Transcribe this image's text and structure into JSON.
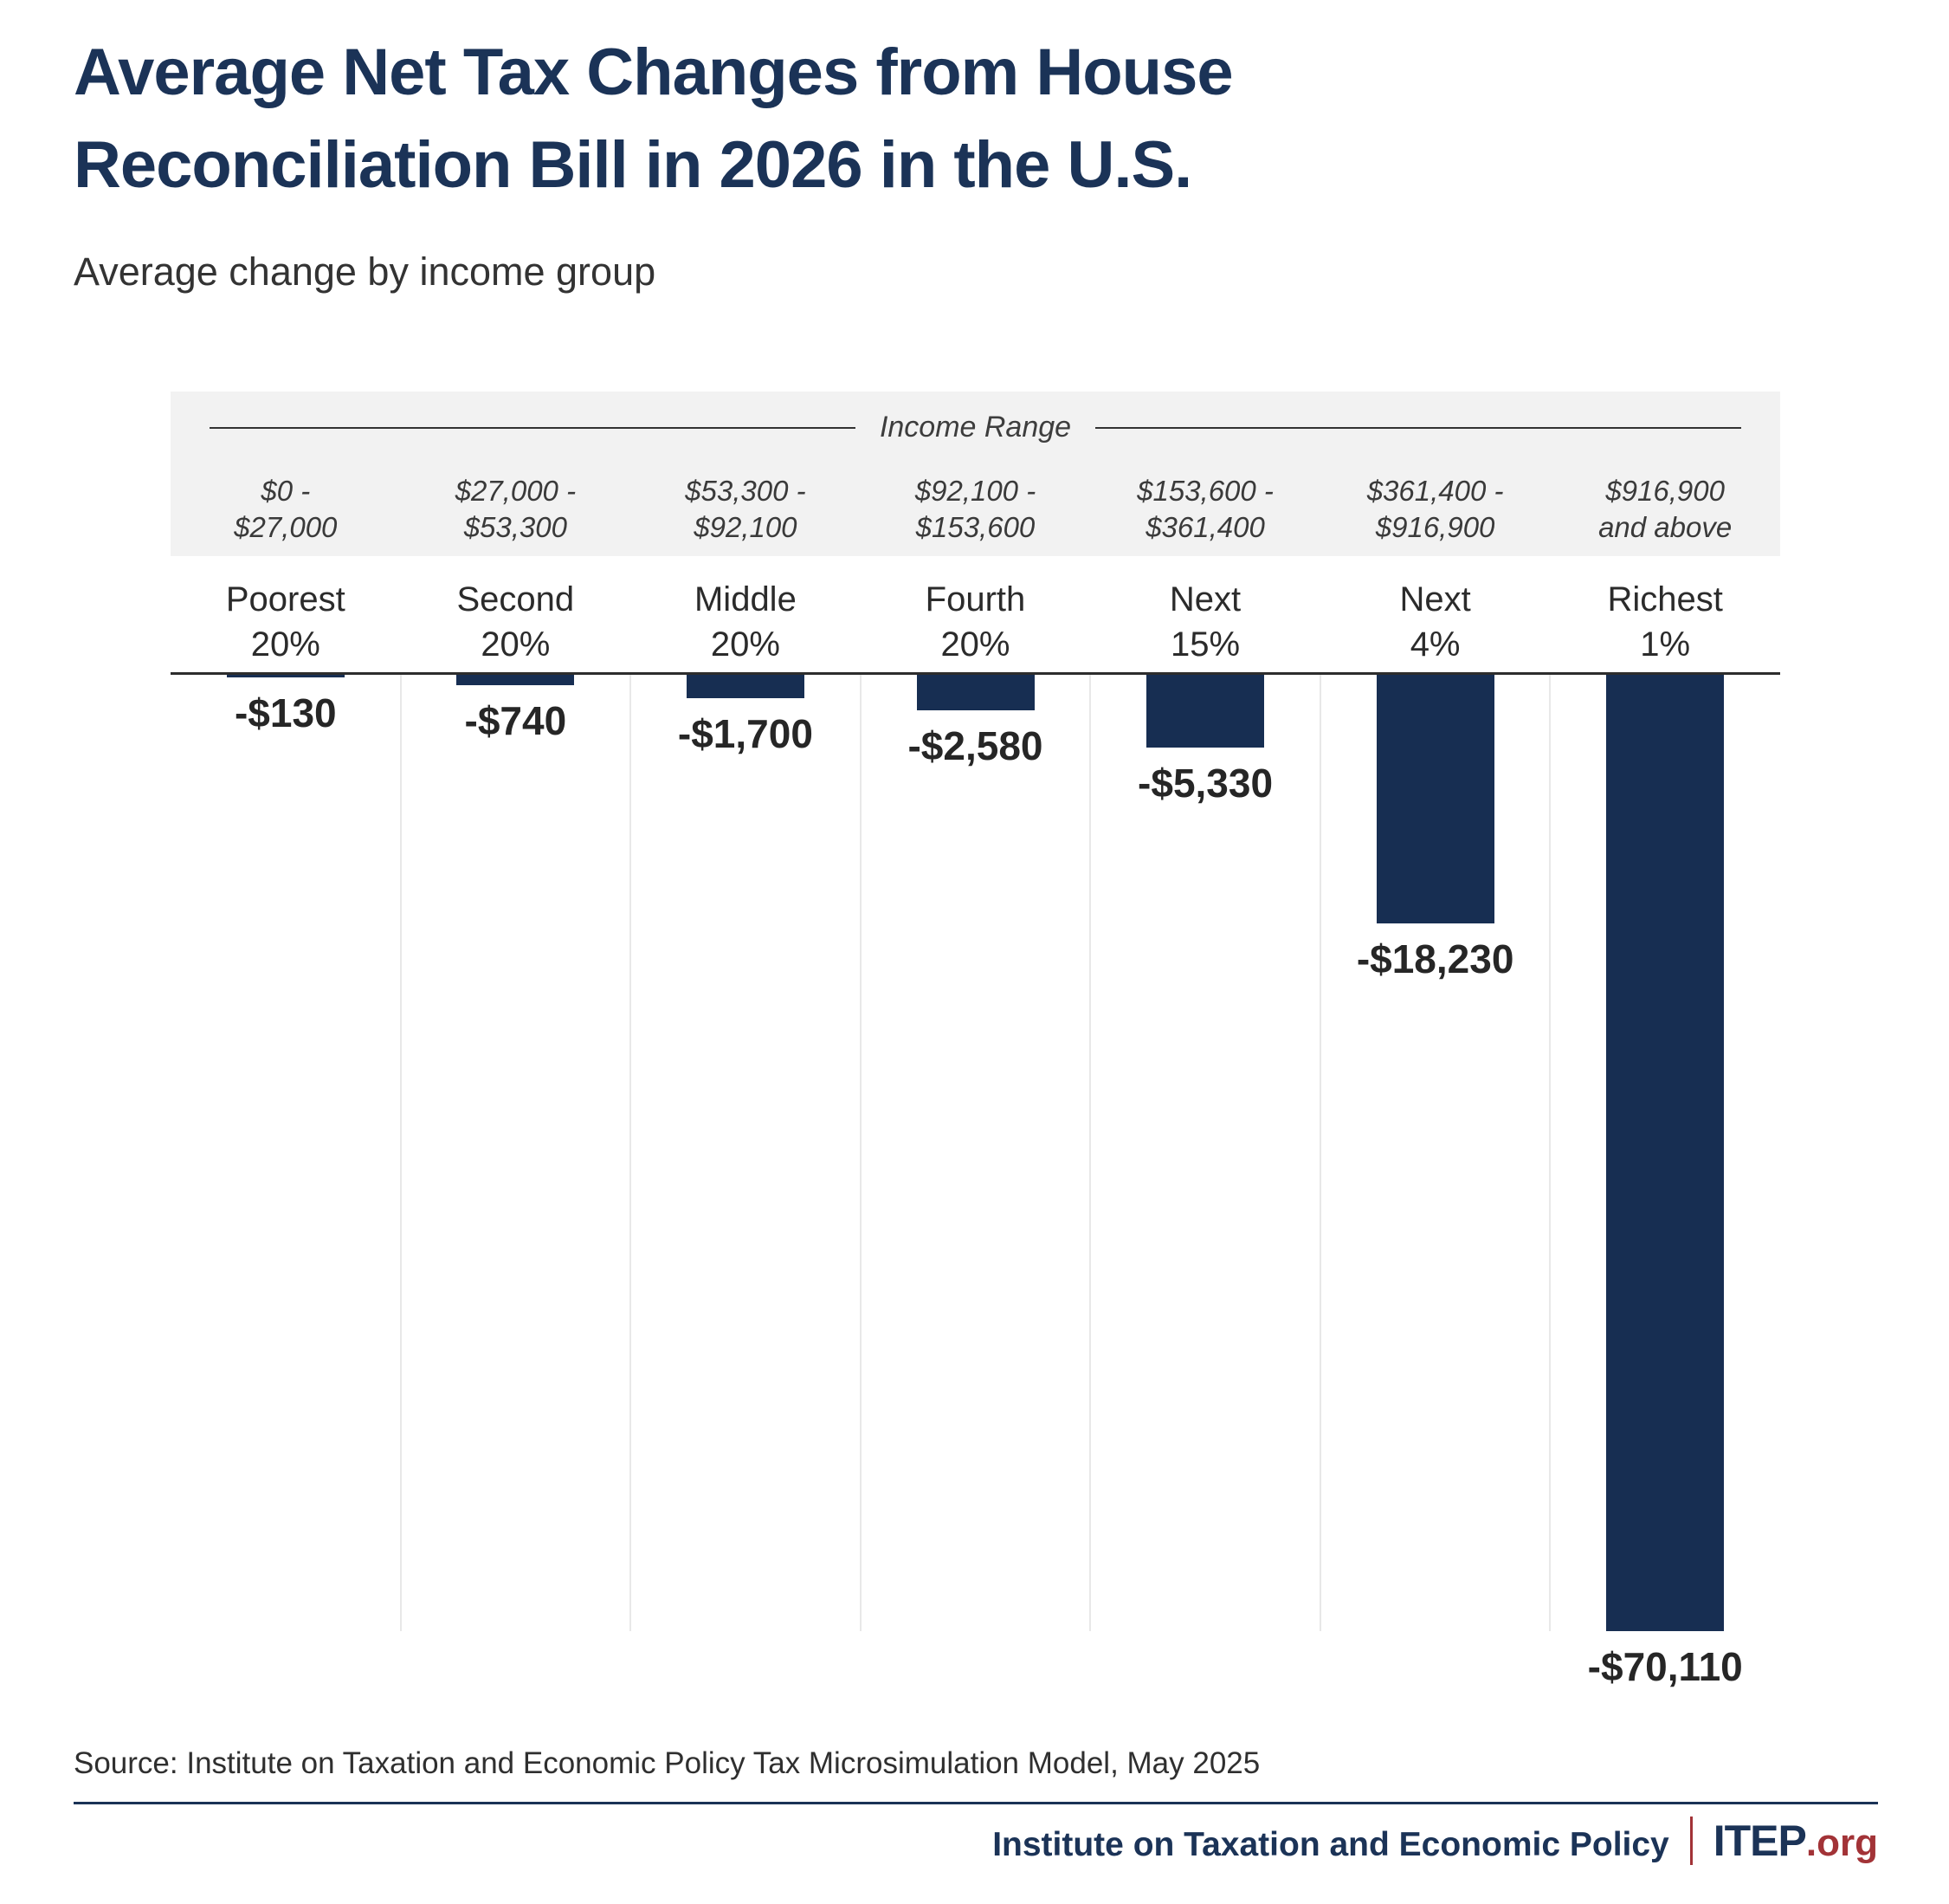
{
  "header": {
    "title_line1": "Average Net Tax Changes from House",
    "title_line2": "Reconciliation Bill in 2026 in the U.S.",
    "subtitle": "Average change by income group"
  },
  "chart_data": {
    "type": "bar",
    "title": "Average Net Tax Changes from House Reconciliation Bill in 2026 in the U.S.",
    "subtitle": "Average change by income group",
    "income_range_header": "Income Range",
    "categories": [
      "Poorest 20%",
      "Second 20%",
      "Middle 20%",
      "Fourth 20%",
      "Next 15%",
      "Next 4%",
      "Richest 1%"
    ],
    "category_lines": [
      [
        "Poorest",
        "20%"
      ],
      [
        "Second",
        "20%"
      ],
      [
        "Middle",
        "20%"
      ],
      [
        "Fourth",
        "20%"
      ],
      [
        "Next",
        "15%"
      ],
      [
        "Next",
        "4%"
      ],
      [
        "Richest",
        "1%"
      ]
    ],
    "income_ranges": [
      [
        "$0 -",
        "$27,000"
      ],
      [
        "$27,000 -",
        "$53,300"
      ],
      [
        "$53,300 -",
        "$92,100"
      ],
      [
        "$92,100 -",
        "$153,600"
      ],
      [
        "$153,600 -",
        "$361,400"
      ],
      [
        "$361,400 -",
        "$916,900"
      ],
      [
        "$916,900",
        "and above"
      ]
    ],
    "values": [
      -130,
      -740,
      -1700,
      -2580,
      -5330,
      -18230,
      -70110
    ],
    "value_labels": [
      "-$130",
      "-$740",
      "-$1,700",
      "-$2,580",
      "-$5,330",
      "-$18,230",
      "-$70,110"
    ],
    "ylim": [
      -70110,
      0
    ],
    "baseline": 0,
    "bars_direction": "down",
    "grid": "vertical column separators only",
    "legend": "none",
    "bar_color": "#172e52"
  },
  "source": {
    "text": "Source: Institute on Taxation and Economic Policy Tax Microsimulation Model, May 2025"
  },
  "footer": {
    "org_name": "Institute on Taxation and Economic Policy",
    "brand": "ITEP",
    "brand_suffix": ".org"
  },
  "colors": {
    "title_navy": "#1b3357",
    "bar_navy": "#172e52",
    "maroon_accent": "#a23337",
    "band_gray": "#f2f2f2",
    "gridline_gray": "#e8e8e8"
  }
}
